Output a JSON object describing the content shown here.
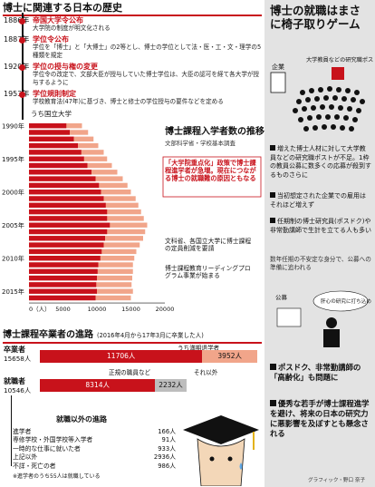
{
  "history": {
    "title": "博士に関連する日本の歴史",
    "events": [
      {
        "year": "1886年",
        "title": "帝国大学令公布",
        "desc": "大学院の制度が明文化される"
      },
      {
        "year": "1887年",
        "title": "学位令公布",
        "desc": "学位を「博士」と「大博士」の2等とし、博士の学位として法・医・工・文・理学の5種類を規定"
      },
      {
        "year": "1920年",
        "title": "学位の授与権の変更",
        "desc": "学位令の改定で、文部大臣が授与していた博士学位は、大臣の認可を経て各大学が授与するように"
      },
      {
        "year": "1953年",
        "title": "学位規則制定",
        "desc": "学校教育法(47年)に基づき、博士と修士の学位授与の要件などを定める"
      }
    ]
  },
  "right_panel": {
    "title": "博士の就職はまさに椅子取りゲーム",
    "illust_labels": {
      "company": "企業",
      "univ": "大学教員などの研究職ポスト",
      "koubo": "公募",
      "kimo": "肝心の研究に打ち込めない!"
    },
    "bullets": [
      "増えた博士人材に対して大学教員などの研究職ポストが不足。1枠の教員公募に数多くの応募が殺到するものさらに",
      "当初想定された企業での雇用はそれほど増えず",
      "任期制の博士研究員(ポスドク)や非常勤講師で生計を立てる人も多い",
      "数年任期の不安定な身分で、公募への準備に追われる"
    ],
    "big_bullets": [
      "ポスドク、非常勤講師の「高齢化」も問題に",
      "優秀な若手が博士課程進学を避け、将来の日本の研究力に悪影響を及ぼすとも懸念される"
    ],
    "credit": "グラフィック・野口 奈子"
  },
  "chart_data": {
    "type": "bar",
    "title": "博士課程入学者数の推移",
    "subtitle": "文部科学省・学校基本調査",
    "legend": "うち国立大学",
    "orientation": "horizontal",
    "x": [
      1990,
      1991,
      1992,
      1993,
      1994,
      1995,
      1996,
      1997,
      1998,
      1999,
      2000,
      2001,
      2002,
      2003,
      2004,
      2005,
      2006,
      2007,
      2008,
      2009,
      2010,
      2011,
      2012,
      2013,
      2014,
      2015,
      2016
    ],
    "series": [
      {
        "name": "",
        "values": [
          7800,
          8700,
          9500,
          10200,
          11000,
          11500,
          12200,
          13000,
          13800,
          14500,
          15000,
          15700,
          16100,
          16500,
          16900,
          17400,
          17100,
          16800,
          16300,
          15800,
          15500,
          15300,
          15300,
          15200,
          15100,
          15300,
          15000
        ]
      },
      {
        "name": "うち国立大学",
        "values": [
          5500,
          6000,
          6600,
          7200,
          7700,
          8100,
          8600,
          9200,
          9800,
          10300,
          10600,
          11000,
          11300,
          11500,
          11500,
          11900,
          11500,
          11200,
          11000,
          10700,
          10500,
          10200,
          10100,
          10000,
          9900,
          10000,
          9800
        ]
      }
    ],
    "xaxis_ticks": [
      "0（人）",
      "5000",
      "10000",
      "15000",
      "20000"
    ],
    "xlim": [
      0,
      20000
    ],
    "ytick_labels": [
      "1990年",
      "1995年",
      "2000年",
      "2005年",
      "2010年",
      "2015年"
    ],
    "annotations": [
      "「大学院重点化」政策で博士課程進学者が急増。現在につながる博士の就職難の原因ともなる",
      "文科省、各国立大学に博士課程の定員削減を要請",
      "博士課程教育リーディングプログラム事業が始まる"
    ]
  },
  "careers": {
    "title": "博士課程卒業者の進路",
    "period": "(2016年4月から17年3月に卒業した人)",
    "graduates_label": "卒業者",
    "graduates_total": "15658人",
    "withdrawal_label": "うち満期退学者",
    "bar1": [
      {
        "value": 11706,
        "text": "11706人"
      },
      {
        "value": 3952,
        "text": "3952人"
      }
    ],
    "employed_label": "就職者",
    "employed_total": "10546人",
    "regular_label": "正規の職員など",
    "other_label": "それ以外",
    "bar2": [
      {
        "value": 8314,
        "text": "8314人"
      },
      {
        "value": 2232,
        "text": "2232人"
      }
    ],
    "non_employment_title": "就職以外の進路",
    "non_employment": [
      {
        "label": "進学者",
        "value": "166人"
      },
      {
        "label": "専修学校・外国学校等入学者",
        "value": "91人"
      },
      {
        "label": "一時的な仕事に就いた者",
        "value": "933人"
      },
      {
        "label": "上記以外",
        "value": "2936人"
      },
      {
        "label": "不詳・死亡の者",
        "value": "986人"
      }
    ],
    "note": "※進学者のうち55人は就職している"
  },
  "colors": {
    "red": "#c8121b",
    "pink": "#f1a58a",
    "dark": "#111111",
    "panel": "#e3e3e3"
  }
}
